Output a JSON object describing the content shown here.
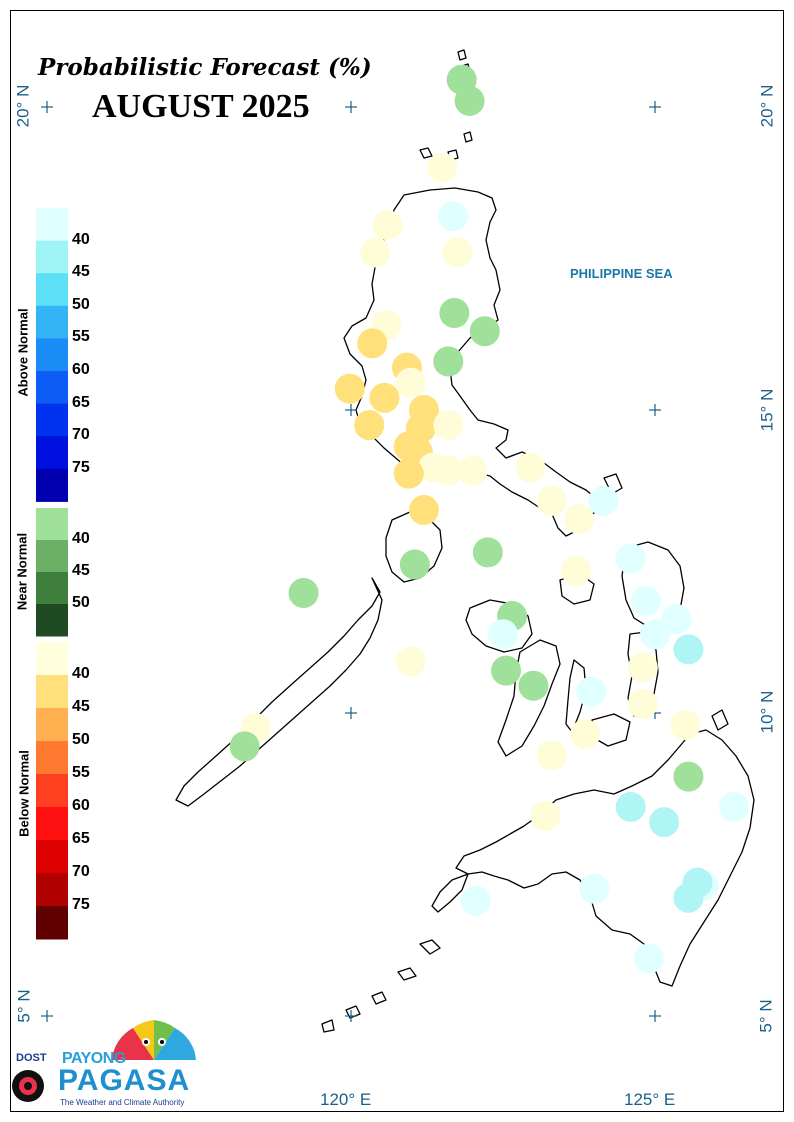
{
  "title": {
    "line1": "Probabilistic Forecast (%)",
    "line2": "AUGUST 2025"
  },
  "sea_label": "PHILIPPINE SEA",
  "graticule": {
    "lat_labels": [
      "20° N",
      "15° N",
      "10° N",
      "5° N"
    ],
    "lon_labels": [
      "120° E",
      "125° E"
    ]
  },
  "legend": {
    "above_normal": {
      "title": "Above Normal",
      "ticks": [
        "40",
        "45",
        "50",
        "55",
        "60",
        "65",
        "70",
        "75"
      ],
      "colors": [
        "#e0ffff",
        "#9ff5f5",
        "#5ce0f5",
        "#33b5f5",
        "#1a8cf5",
        "#0d5cf5",
        "#0033f0",
        "#0010e0",
        "#0000b0"
      ]
    },
    "near_normal": {
      "title": "Near Normal",
      "ticks": [
        "40",
        "45",
        "50"
      ],
      "colors": [
        "#9fe09a",
        "#6bb065",
        "#3f7f3d",
        "#1f4a22"
      ]
    },
    "below_normal": {
      "title": "Below Normal",
      "ticks": [
        "40",
        "45",
        "50",
        "55",
        "60",
        "65",
        "70",
        "75"
      ],
      "colors": [
        "#ffffdd",
        "#ffe07a",
        "#ffb050",
        "#ff7a30",
        "#ff4020",
        "#ff1010",
        "#dd0000",
        "#b00000",
        "#600000"
      ]
    }
  },
  "stations": [
    {
      "lon": 121.82,
      "lat": 20.45,
      "category": "near"
    },
    {
      "lon": 121.95,
      "lat": 20.1,
      "category": "near"
    },
    {
      "lon": 121.5,
      "lat": 19.0,
      "category": "below"
    },
    {
      "lon": 121.68,
      "lat": 18.2,
      "category": "above"
    },
    {
      "lon": 120.6,
      "lat": 18.05,
      "category": "below"
    },
    {
      "lon": 120.4,
      "lat": 17.6,
      "category": "below"
    },
    {
      "lon": 121.75,
      "lat": 17.6,
      "category": "below"
    },
    {
      "lon": 121.7,
      "lat": 16.6,
      "category": "near"
    },
    {
      "lon": 122.2,
      "lat": 16.3,
      "category": "near"
    },
    {
      "lon": 120.58,
      "lat": 16.4,
      "category": "below"
    },
    {
      "lon": 120.35,
      "lat": 16.1,
      "category": "below45"
    },
    {
      "lon": 120.92,
      "lat": 15.7,
      "category": "below45"
    },
    {
      "lon": 121.6,
      "lat": 15.8,
      "category": "near"
    },
    {
      "lon": 120.98,
      "lat": 15.45,
      "category": "below"
    },
    {
      "lon": 119.98,
      "lat": 15.35,
      "category": "below45"
    },
    {
      "lon": 120.55,
      "lat": 15.2,
      "category": "below45"
    },
    {
      "lon": 121.2,
      "lat": 15.0,
      "category": "below45"
    },
    {
      "lon": 120.3,
      "lat": 14.75,
      "category": "below45"
    },
    {
      "lon": 121.15,
      "lat": 14.7,
      "category": "below45"
    },
    {
      "lon": 121.6,
      "lat": 14.75,
      "category": "below"
    },
    {
      "lon": 120.95,
      "lat": 14.4,
      "category": "below45"
    },
    {
      "lon": 121.1,
      "lat": 14.3,
      "category": "below45"
    },
    {
      "lon": 121.35,
      "lat": 14.05,
      "category": "below"
    },
    {
      "lon": 121.6,
      "lat": 14.0,
      "category": "below"
    },
    {
      "lon": 122.0,
      "lat": 14.0,
      "category": "below"
    },
    {
      "lon": 120.95,
      "lat": 13.95,
      "category": "below45"
    },
    {
      "lon": 122.95,
      "lat": 14.05,
      "category": "below"
    },
    {
      "lon": 123.3,
      "lat": 13.5,
      "category": "below"
    },
    {
      "lon": 123.75,
      "lat": 13.2,
      "category": "below"
    },
    {
      "lon": 124.15,
      "lat": 13.5,
      "category": "above"
    },
    {
      "lon": 121.2,
      "lat": 13.35,
      "category": "below45"
    },
    {
      "lon": 122.25,
      "lat": 12.65,
      "category": "near"
    },
    {
      "lon": 121.05,
      "lat": 12.45,
      "category": "near"
    },
    {
      "lon": 123.7,
      "lat": 12.35,
      "category": "below"
    },
    {
      "lon": 124.6,
      "lat": 12.55,
      "category": "above"
    },
    {
      "lon": 119.22,
      "lat": 11.98,
      "category": "near"
    },
    {
      "lon": 124.85,
      "lat": 11.85,
      "category": "above"
    },
    {
      "lon": 125.35,
      "lat": 11.55,
      "category": "above"
    },
    {
      "lon": 122.65,
      "lat": 11.6,
      "category": "near"
    },
    {
      "lon": 122.5,
      "lat": 11.3,
      "category": "above"
    },
    {
      "lon": 125.0,
      "lat": 11.3,
      "category": "above"
    },
    {
      "lon": 125.55,
      "lat": 11.05,
      "category": "above40"
    },
    {
      "lon": 120.98,
      "lat": 10.85,
      "category": "below"
    },
    {
      "lon": 124.8,
      "lat": 10.75,
      "category": "below"
    },
    {
      "lon": 122.55,
      "lat": 10.7,
      "category": "near"
    },
    {
      "lon": 123.0,
      "lat": 10.45,
      "category": "near"
    },
    {
      "lon": 123.95,
      "lat": 10.35,
      "category": "above"
    },
    {
      "lon": 124.8,
      "lat": 10.15,
      "category": "below"
    },
    {
      "lon": 118.43,
      "lat": 9.75,
      "category": "below"
    },
    {
      "lon": 123.85,
      "lat": 9.65,
      "category": "below"
    },
    {
      "lon": 125.5,
      "lat": 9.8,
      "category": "below"
    },
    {
      "lon": 118.25,
      "lat": 9.45,
      "category": "near"
    },
    {
      "lon": 123.3,
      "lat": 9.3,
      "category": "below"
    },
    {
      "lon": 125.55,
      "lat": 8.95,
      "category": "near"
    },
    {
      "lon": 123.2,
      "lat": 8.3,
      "category": "below"
    },
    {
      "lon": 124.6,
      "lat": 8.45,
      "category": "above40"
    },
    {
      "lon": 126.3,
      "lat": 8.45,
      "category": "above"
    },
    {
      "lon": 125.15,
      "lat": 8.2,
      "category": "above40"
    },
    {
      "lon": 124.0,
      "lat": 7.1,
      "category": "above"
    },
    {
      "lon": 125.8,
      "lat": 7.15,
      "category": "above"
    },
    {
      "lon": 125.7,
      "lat": 7.2,
      "category": "above40"
    },
    {
      "lon": 125.55,
      "lat": 6.95,
      "category": "above40"
    },
    {
      "lon": 122.05,
      "lat": 6.9,
      "category": "above"
    },
    {
      "lon": 124.9,
      "lat": 5.95,
      "category": "above"
    }
  ],
  "logo": {
    "dost": "DOST",
    "payong": "PAYONG",
    "pagasa": "PAGASA",
    "tagline": "The Weather and Climate Authority"
  }
}
